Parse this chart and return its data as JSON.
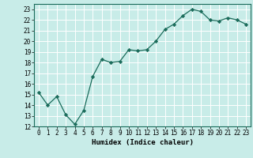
{
  "x": [
    0,
    1,
    2,
    3,
    4,
    5,
    6,
    7,
    8,
    9,
    10,
    11,
    12,
    13,
    14,
    15,
    16,
    17,
    18,
    19,
    20,
    21,
    22,
    23
  ],
  "y": [
    15.2,
    14.0,
    14.8,
    13.1,
    12.2,
    13.5,
    16.7,
    18.3,
    18.0,
    18.1,
    19.2,
    19.1,
    19.2,
    20.0,
    21.1,
    21.6,
    22.4,
    23.0,
    22.8,
    22.0,
    21.9,
    22.2,
    22.0,
    21.6
  ],
  "xlabel": "Humidex (Indice chaleur)",
  "xlim": [
    -0.5,
    23.5
  ],
  "ylim": [
    12,
    23.5
  ],
  "yticks": [
    12,
    13,
    14,
    15,
    16,
    17,
    18,
    19,
    20,
    21,
    22,
    23
  ],
  "xticks": [
    0,
    1,
    2,
    3,
    4,
    5,
    6,
    7,
    8,
    9,
    10,
    11,
    12,
    13,
    14,
    15,
    16,
    17,
    18,
    19,
    20,
    21,
    22,
    23
  ],
  "line_color": "#1a6b5a",
  "marker_color": "#1a6b5a",
  "bg_color": "#c8ece8",
  "grid_color": "#ffffff",
  "label_fontsize": 6.5,
  "tick_fontsize": 5.5
}
